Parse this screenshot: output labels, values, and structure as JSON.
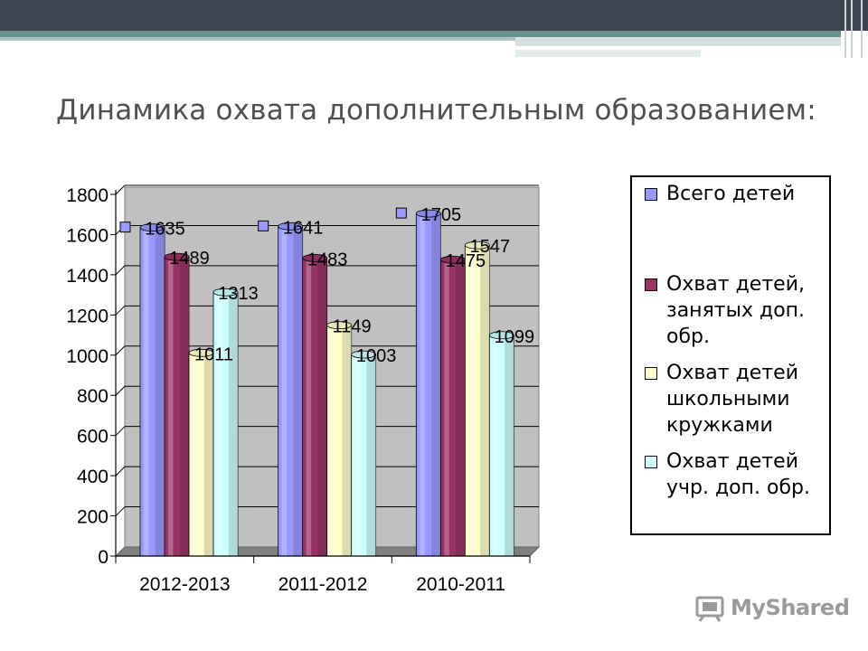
{
  "slide": {
    "title": "Динамика охвата дополнительным образованием:"
  },
  "chart_data": {
    "type": "bar",
    "categories": [
      "2012-2013",
      "2011-2012",
      "2010-2011"
    ],
    "series": [
      {
        "name": "Всего детей",
        "values": [
          1635,
          1641,
          1705
        ],
        "color": "#9999ff"
      },
      {
        "name": "Охват детей, занятых доп. обр.",
        "values": [
          1489,
          1483,
          1475
        ],
        "color": "#993366"
      },
      {
        "name": "Охват детей школьными кружками",
        "values": [
          1011,
          1149,
          1547
        ],
        "color": "#ffffcc"
      },
      {
        "name": "Охват детей учр. доп. обр.",
        "values": [
          1313,
          1003,
          1099
        ],
        "color": "#ccffff"
      }
    ],
    "y_ticks": [
      "0",
      "200",
      "400",
      "600",
      "800",
      "1000",
      "1200",
      "1400",
      "1600",
      "1800"
    ],
    "ylim": [
      0,
      1800
    ],
    "grid": true,
    "legend_position": "right"
  },
  "logo": {
    "text": "MyShared",
    "icon": "projector-icon"
  }
}
